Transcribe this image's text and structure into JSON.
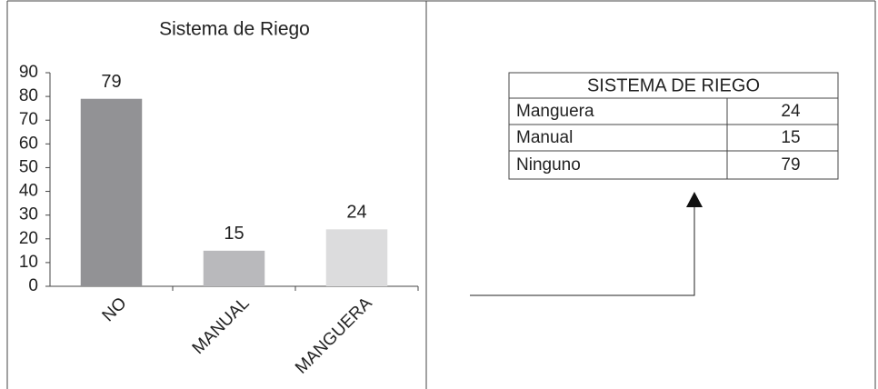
{
  "chart_data": {
    "type": "bar",
    "title": "Sistema de Riego",
    "categories": [
      "NO",
      "MANUAL",
      "MANGUERA"
    ],
    "values": [
      79,
      15,
      24
    ],
    "colors": [
      "#929295",
      "#b9b9bc",
      "#dcdcdd"
    ],
    "ylim": [
      0,
      90
    ],
    "yticks": [
      0,
      10,
      20,
      30,
      40,
      50,
      60,
      70,
      80,
      90
    ],
    "grid": false
  },
  "table": {
    "title": "SISTEMA DE RIEGO",
    "rows": [
      [
        "Manguera",
        24
      ],
      [
        "Manual",
        15
      ],
      [
        "Ninguno",
        79
      ]
    ]
  }
}
